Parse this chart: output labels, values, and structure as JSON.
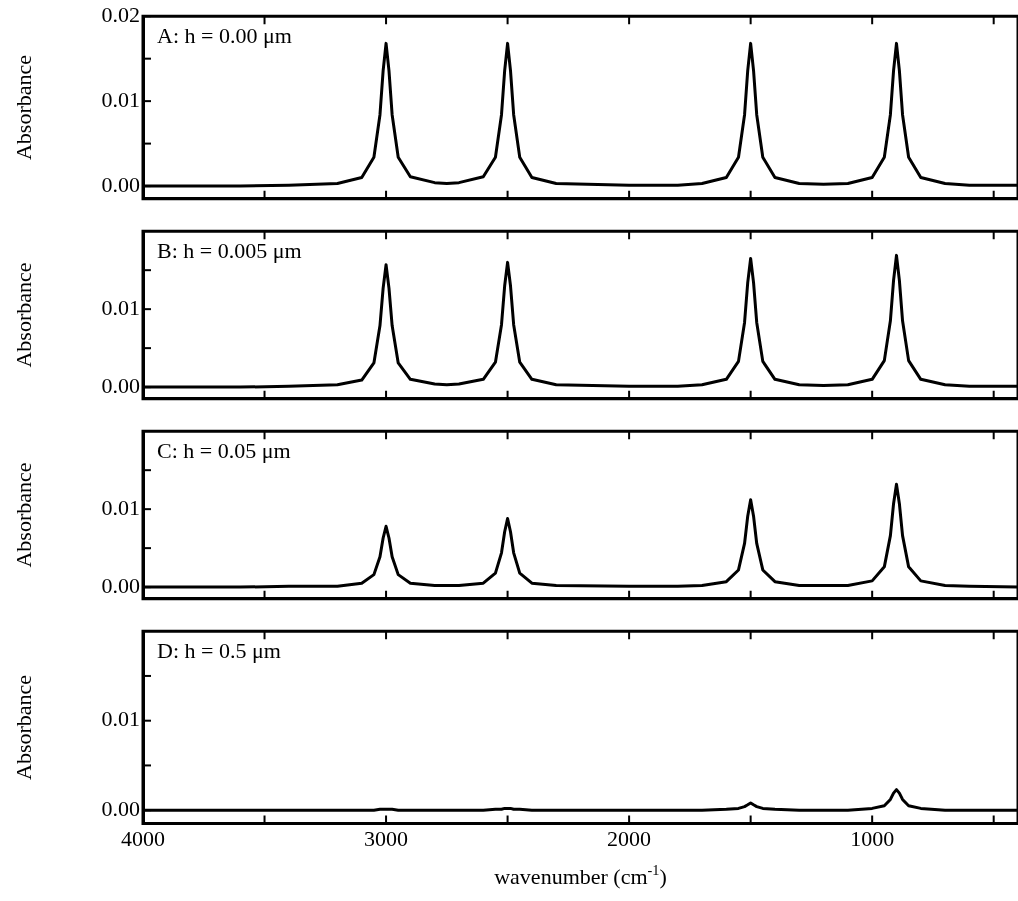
{
  "chart_data": [
    {
      "type": "line",
      "annotations": [
        "A: h = 0.00 μm"
      ],
      "ylabel": "Absorbance",
      "xlim": [
        4000,
        400
      ],
      "xticks": [
        4000,
        {
          "value": 3500,
          "label": null
        },
        3000,
        {
          "value": 2500,
          "label": null
        },
        2000,
        {
          "value": 1500,
          "label": null
        },
        1000,
        {
          "value": 500,
          "label": null
        }
      ],
      "ylim": [
        -0.0015,
        0.02
      ],
      "yticks": [
        {
          "value": 0,
          "label": "0.00"
        },
        {
          "value": 0.005,
          "label": null
        },
        {
          "value": 0.01,
          "label": "0.01"
        },
        {
          "value": 0.015,
          "label": null
        },
        {
          "value": 0.02,
          "label": "0.02"
        }
      ],
      "tick_labels": "y",
      "legend": false,
      "marker": "none",
      "line_style": "solid",
      "grid": false,
      "x": [
        4000,
        3600,
        3400,
        3200,
        3100,
        3050,
        3025,
        3012,
        3000,
        2988,
        2975,
        2950,
        2900,
        2800,
        2750,
        2700,
        2600,
        2550,
        2525,
        2512,
        2500,
        2488,
        2475,
        2450,
        2400,
        2300,
        2000,
        1800,
        1700,
        1600,
        1550,
        1525,
        1512,
        1500,
        1488,
        1475,
        1450,
        1400,
        1300,
        1200,
        1100,
        1000,
        950,
        925,
        912,
        900,
        888,
        875,
        850,
        800,
        700,
        600,
        400
      ],
      "series": [
        {
          "color": "#000000",
          "values": [
            0.0,
            0.0,
            0.0001,
            0.0003,
            0.001,
            0.0034,
            0.0084,
            0.0136,
            0.0168,
            0.0136,
            0.0084,
            0.0034,
            0.0011,
            0.0004,
            0.0003,
            0.0004,
            0.0011,
            0.0034,
            0.0084,
            0.0136,
            0.0168,
            0.0136,
            0.0084,
            0.0034,
            0.001,
            0.0003,
            0.0001,
            0.0001,
            0.0003,
            0.001,
            0.0034,
            0.0084,
            0.0136,
            0.0168,
            0.0136,
            0.0084,
            0.0034,
            0.001,
            0.0003,
            0.0002,
            0.0003,
            0.001,
            0.0034,
            0.0084,
            0.0136,
            0.0168,
            0.0136,
            0.0084,
            0.0034,
            0.001,
            0.0003,
            0.0001,
            0.0001
          ]
        }
      ]
    },
    {
      "type": "line",
      "annotations": [
        "B: h = 0.005 μm"
      ],
      "ylabel": "Absorbance",
      "xlim": [
        4000,
        400
      ],
      "xticks": [
        4000,
        {
          "value": 3500,
          "label": null
        },
        3000,
        {
          "value": 2500,
          "label": null
        },
        2000,
        {
          "value": 1500,
          "label": null
        },
        1000,
        {
          "value": 500,
          "label": null
        }
      ],
      "ylim": [
        -0.0015,
        0.02
      ],
      "yticks": [
        {
          "value": 0,
          "label": "0.00"
        },
        {
          "value": 0.005,
          "label": null
        },
        {
          "value": 0.01,
          "label": "0.01"
        },
        {
          "value": 0.015,
          "label": null
        }
      ],
      "tick_labels": "y",
      "legend": false,
      "marker": "none",
      "line_style": "solid",
      "grid": false,
      "x": [
        4000,
        3600,
        3400,
        3200,
        3100,
        3050,
        3025,
        3012,
        3000,
        2988,
        2975,
        2950,
        2900,
        2800,
        2750,
        2700,
        2600,
        2550,
        2525,
        2512,
        2500,
        2488,
        2475,
        2450,
        2400,
        2300,
        2000,
        1800,
        1700,
        1600,
        1550,
        1525,
        1512,
        1500,
        1488,
        1475,
        1450,
        1400,
        1300,
        1200,
        1100,
        1000,
        950,
        925,
        912,
        900,
        888,
        875,
        850,
        800,
        700,
        600,
        400
      ],
      "series": [
        {
          "color": "#000000",
          "values": [
            0.0,
            0.0,
            0.0001,
            0.0003,
            0.0009,
            0.0031,
            0.0079,
            0.0127,
            0.0157,
            0.0127,
            0.0079,
            0.0031,
            0.001,
            0.0004,
            0.0003,
            0.0004,
            0.001,
            0.0032,
            0.008,
            0.013,
            0.016,
            0.013,
            0.008,
            0.0032,
            0.001,
            0.0003,
            0.0001,
            0.0001,
            0.0003,
            0.001,
            0.0033,
            0.0083,
            0.0134,
            0.0165,
            0.0134,
            0.0083,
            0.0033,
            0.001,
            0.0003,
            0.0002,
            0.0003,
            0.001,
            0.0034,
            0.0085,
            0.0137,
            0.0169,
            0.0137,
            0.0085,
            0.0034,
            0.001,
            0.0003,
            0.0001,
            0.0001
          ]
        }
      ]
    },
    {
      "type": "line",
      "annotations": [
        "C: h = 0.05 μm"
      ],
      "ylabel": "Absorbance",
      "xlim": [
        4000,
        400
      ],
      "xticks": [
        4000,
        {
          "value": 3500,
          "label": null
        },
        3000,
        {
          "value": 2500,
          "label": null
        },
        2000,
        {
          "value": 1500,
          "label": null
        },
        1000,
        {
          "value": 500,
          "label": null
        }
      ],
      "ylim": [
        -0.0015,
        0.02
      ],
      "yticks": [
        {
          "value": 0,
          "label": "0.00"
        },
        {
          "value": 0.005,
          "label": null
        },
        {
          "value": 0.01,
          "label": "0.01"
        },
        {
          "value": 0.015,
          "label": null
        }
      ],
      "tick_labels": "y",
      "legend": false,
      "marker": "none",
      "line_style": "solid",
      "grid": false,
      "x": [
        4000,
        3600,
        3400,
        3200,
        3100,
        3050,
        3025,
        3012,
        3000,
        2988,
        2975,
        2950,
        2900,
        2800,
        2750,
        2700,
        2600,
        2550,
        2525,
        2512,
        2500,
        2488,
        2475,
        2450,
        2400,
        2300,
        2000,
        1800,
        1700,
        1600,
        1550,
        1525,
        1512,
        1500,
        1488,
        1475,
        1450,
        1400,
        1300,
        1200,
        1100,
        1000,
        950,
        925,
        912,
        900,
        888,
        875,
        850,
        800,
        700,
        600,
        400
      ],
      "series": [
        {
          "color": "#000000",
          "values": [
            0.0,
            0.0,
            0.0001,
            0.0001,
            0.0005,
            0.0016,
            0.0039,
            0.0063,
            0.0078,
            0.0063,
            0.0039,
            0.0016,
            0.0005,
            0.0002,
            0.0002,
            0.0002,
            0.0005,
            0.0018,
            0.0044,
            0.0071,
            0.0088,
            0.0071,
            0.0044,
            0.0018,
            0.0005,
            0.0002,
            0.0001,
            0.0001,
            0.0002,
            0.0007,
            0.0022,
            0.0056,
            0.0091,
            0.0112,
            0.0091,
            0.0056,
            0.0022,
            0.0007,
            0.0002,
            0.0002,
            0.0002,
            0.0008,
            0.0026,
            0.0066,
            0.0107,
            0.0132,
            0.0107,
            0.0066,
            0.0026,
            0.0008,
            0.0002,
            0.0001,
            0.0
          ]
        }
      ]
    },
    {
      "type": "line",
      "annotations": [
        "D: h = 0.5 μm"
      ],
      "ylabel": "Absorbance",
      "xlabel": "wavenumber (cm$^{-1}$)",
      "xlim": [
        4000,
        400
      ],
      "xticks": [
        4000,
        {
          "value": 3500,
          "label": null
        },
        3000,
        {
          "value": 2500,
          "label": null
        },
        2000,
        {
          "value": 1500,
          "label": null
        },
        1000,
        {
          "value": 500,
          "label": null
        }
      ],
      "ylim": [
        -0.0015,
        0.02
      ],
      "yticks": [
        {
          "value": 0,
          "label": "0.00"
        },
        {
          "value": 0.005,
          "label": null
        },
        {
          "value": 0.01,
          "label": "0.01"
        },
        {
          "value": 0.015,
          "label": null
        }
      ],
      "legend": false,
      "marker": "none",
      "line_style": "solid",
      "grid": false,
      "x": [
        4000,
        3600,
        3400,
        3200,
        3100,
        3050,
        3025,
        3012,
        3000,
        2988,
        2975,
        2950,
        2900,
        2800,
        2750,
        2700,
        2600,
        2550,
        2525,
        2512,
        2500,
        2488,
        2475,
        2450,
        2400,
        2300,
        2000,
        1800,
        1700,
        1600,
        1550,
        1525,
        1512,
        1500,
        1488,
        1475,
        1450,
        1400,
        1300,
        1200,
        1100,
        1000,
        950,
        925,
        912,
        900,
        888,
        875,
        850,
        800,
        700,
        600,
        400
      ],
      "series": [
        {
          "color": "#000000",
          "values": [
            0.0,
            0.0,
            0.0,
            0.0,
            0.0,
            0.0,
            0.0001,
            0.0001,
            0.0001,
            0.0001,
            0.0001,
            0.0,
            0.0,
            0.0,
            0.0,
            0.0,
            0.0,
            0.0001,
            0.0001,
            0.0002,
            0.0002,
            0.0002,
            0.0001,
            0.0001,
            0.0,
            0.0,
            0.0,
            0.0,
            0.0,
            0.0001,
            0.0002,
            0.0004,
            0.0006,
            0.0008,
            0.0006,
            0.0004,
            0.0002,
            0.0001,
            0.0,
            0.0,
            0.0,
            0.0002,
            0.0005,
            0.0012,
            0.0019,
            0.0023,
            0.0019,
            0.0012,
            0.0005,
            0.0002,
            0.0,
            0.0,
            0.0
          ]
        }
      ]
    }
  ]
}
